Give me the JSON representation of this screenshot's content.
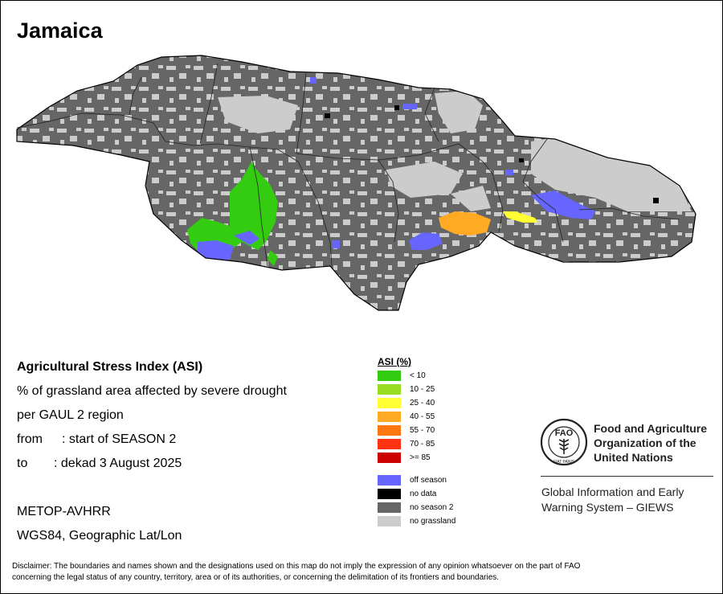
{
  "title": "Jamaica",
  "info": {
    "index_name": "Agricultural Stress Index (ASI)",
    "description": "% of grassland area affected by severe drought",
    "unit_region": "per GAUL 2 region",
    "from_label": "from",
    "from_value": ": start of SEASON 2",
    "to_label": "to",
    "to_value": ": dekad 3 August 2025",
    "sensor": "METOP-AVHRR",
    "projection": "WGS84, Geographic Lat/Lon"
  },
  "legend": {
    "title": "ASI (%)",
    "classes": [
      {
        "label": "< 10",
        "color": "#33cc11"
      },
      {
        "label": "10 - 25",
        "color": "#99dd22"
      },
      {
        "label": "25 - 40",
        "color": "#ffff33"
      },
      {
        "label": "40 - 55",
        "color": "#ffaa22"
      },
      {
        "label": "55 - 70",
        "color": "#ff7711"
      },
      {
        "label": "70 - 85",
        "color": "#ff3311"
      },
      {
        "label": ">= 85",
        "color": "#cc0000"
      }
    ],
    "other_classes": [
      {
        "label": "off season",
        "color": "#6666ff"
      },
      {
        "label": "no data",
        "color": "#000000"
      },
      {
        "label": "no season 2",
        "color": "#666666"
      },
      {
        "label": "no grassland",
        "color": "#cccccc"
      }
    ]
  },
  "map_colors": {
    "outline": "#000000",
    "boundary": "#222222",
    "no_season": "#666666",
    "no_grassland": "#cccccc",
    "off_season": "#6666ff",
    "asi_lt10": "#33cc11",
    "asi_25_40": "#ffff33",
    "asi_40_55": "#ffaa22",
    "no_data": "#000000"
  },
  "organization": {
    "name_line1": "Food and Agriculture",
    "name_line2": "Organization of the",
    "name_line3": "United Nations",
    "logo_letters": "FAO",
    "logo_motto": "FIAT PANIS",
    "system_line1": "Global Information and Early",
    "system_line2": "Warning System – GIEWS"
  },
  "disclaimer": {
    "line1": "Disclaimer: The boundaries and names shown and the designations used on this map do not imply the expression of any opinion whatsoever on the part of FAO",
    "line2": "concerning the legal status of any country, territory, area or of its authorities, or concerning the delimitation of its frontiers and boundaries."
  }
}
